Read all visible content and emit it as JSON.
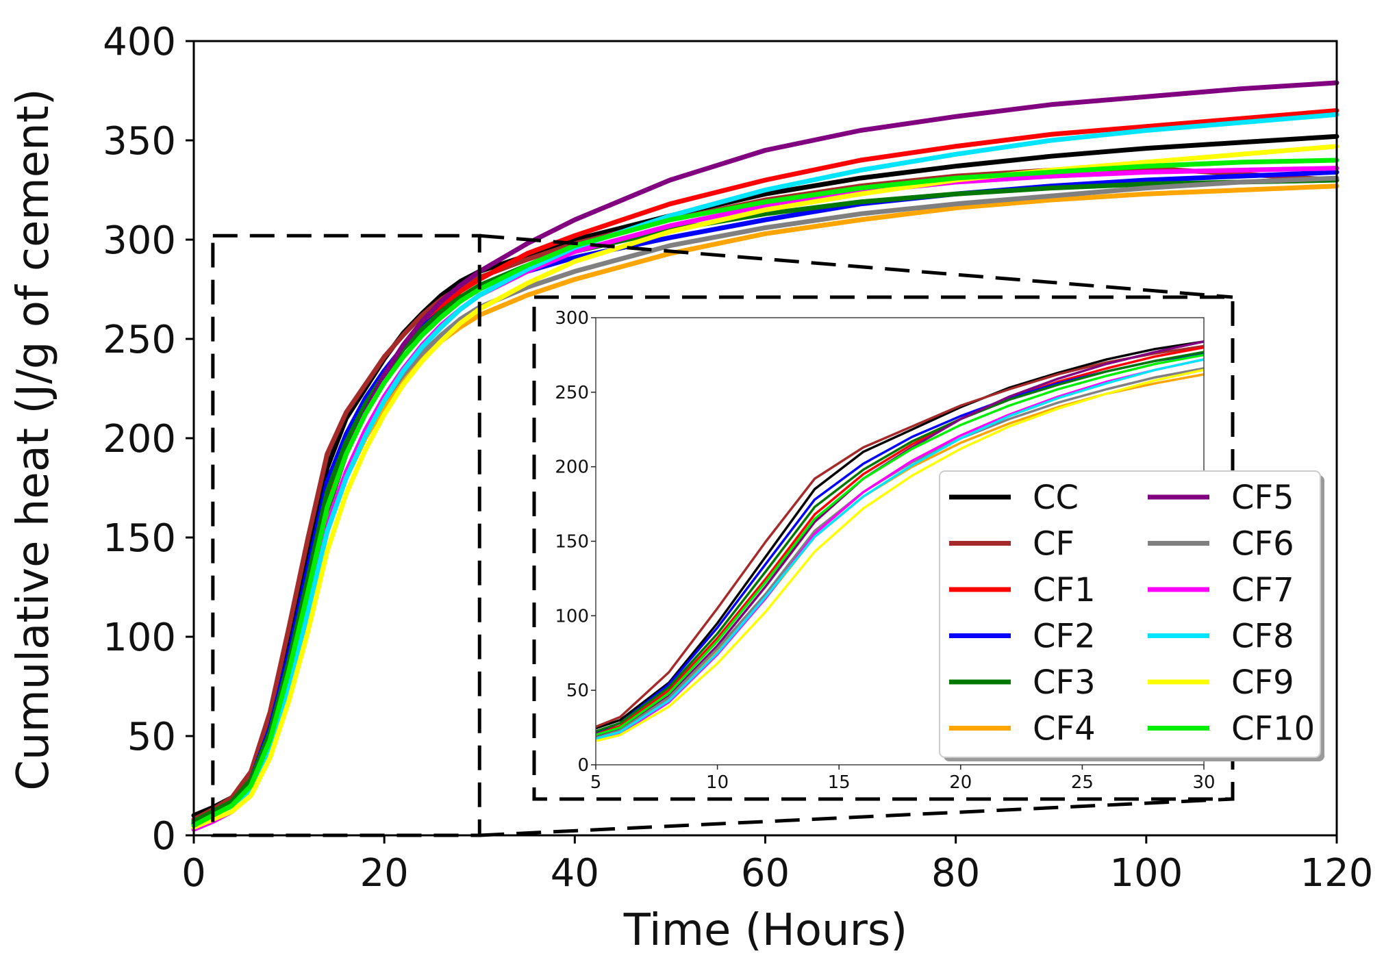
{
  "chart_data": {
    "type": "line",
    "xlabel": "Time (Hours)",
    "ylabel": "Cumulative heat (J/g of cement)",
    "xlim": [
      0,
      120
    ],
    "ylim": [
      0,
      400
    ],
    "xticks": [
      "0",
      "20",
      "40",
      "60",
      "80",
      "100",
      "120"
    ],
    "yticks": [
      "0",
      "50",
      "100",
      "150",
      "200",
      "250",
      "300",
      "350",
      "400"
    ],
    "x": [
      0,
      2,
      4,
      6,
      8,
      10,
      12,
      14,
      16,
      18,
      20,
      22,
      24,
      26,
      28,
      30,
      35,
      40,
      50,
      60,
      70,
      80,
      90,
      100,
      110,
      120
    ],
    "series": [
      {
        "name": "CC",
        "color": "#000000",
        "values": [
          10,
          14,
          19,
          30,
          55,
          95,
          140,
          185,
          210,
          225,
          240,
          253,
          263,
          272,
          279,
          284,
          292,
          300,
          312,
          323,
          331,
          337,
          342,
          346,
          349,
          352
        ]
      },
      {
        "name": "CF",
        "color": "#a52a2a",
        "values": [
          8,
          13,
          19,
          32,
          62,
          105,
          150,
          192,
          213,
          227,
          241,
          252,
          262,
          270,
          276,
          281,
          290,
          298,
          310,
          320,
          327,
          332,
          335,
          336,
          333,
          330
        ]
      },
      {
        "name": "CF1",
        "color": "#ff0000",
        "values": [
          6,
          11,
          16,
          26,
          50,
          85,
          125,
          168,
          195,
          215,
          232,
          246,
          257,
          266,
          274,
          280,
          293,
          302,
          318,
          330,
          340,
          347,
          353,
          357,
          361,
          365
        ]
      },
      {
        "name": "CF2",
        "color": "#0000ff",
        "values": [
          6,
          11,
          16,
          28,
          54,
          92,
          135,
          178,
          202,
          220,
          234,
          246,
          256,
          264,
          271,
          276,
          284,
          291,
          301,
          310,
          318,
          323,
          327,
          330,
          332,
          334
        ]
      },
      {
        "name": "CF3",
        "color": "#007700",
        "values": [
          7,
          12,
          17,
          28,
          52,
          88,
          130,
          173,
          198,
          217,
          232,
          245,
          255,
          264,
          271,
          277,
          287,
          294,
          305,
          313,
          319,
          323,
          326,
          328,
          329,
          330
        ]
      },
      {
        "name": "CF4",
        "color": "#ffa500",
        "values": [
          3,
          7,
          12,
          22,
          44,
          76,
          112,
          153,
          180,
          200,
          216,
          229,
          240,
          249,
          256,
          262,
          272,
          280,
          293,
          303,
          310,
          316,
          320,
          323,
          325,
          327
        ]
      },
      {
        "name": "CF5",
        "color": "#800080",
        "values": [
          5,
          9,
          14,
          24,
          46,
          80,
          120,
          163,
          192,
          213,
          232,
          247,
          259,
          269,
          277,
          284,
          298,
          310,
          330,
          345,
          355,
          362,
          368,
          372,
          376,
          379
        ]
      },
      {
        "name": "CF6",
        "color": "#808080",
        "values": [
          4,
          8,
          13,
          23,
          45,
          78,
          115,
          157,
          183,
          203,
          219,
          232,
          243,
          252,
          260,
          266,
          276,
          284,
          297,
          306,
          313,
          318,
          322,
          326,
          329,
          331
        ]
      },
      {
        "name": "CF7",
        "color": "#ff00ff",
        "values": [
          3,
          7,
          12,
          21,
          42,
          74,
          112,
          155,
          183,
          204,
          221,
          235,
          247,
          257,
          265,
          272,
          284,
          294,
          307,
          317,
          324,
          329,
          332,
          334,
          335,
          336
        ]
      },
      {
        "name": "CF8",
        "color": "#00e5ff",
        "values": [
          4,
          8,
          13,
          22,
          43,
          75,
          113,
          153,
          180,
          201,
          219,
          234,
          246,
          256,
          265,
          272,
          285,
          296,
          312,
          325,
          335,
          343,
          350,
          355,
          359,
          363
        ]
      },
      {
        "name": "CF9",
        "color": "#ffff00",
        "values": [
          4,
          8,
          12,
          20,
          39,
          68,
          103,
          143,
          172,
          194,
          212,
          227,
          239,
          249,
          258,
          265,
          278,
          289,
          304,
          315,
          323,
          330,
          335,
          339,
          343,
          347
        ]
      },
      {
        "name": "CF10",
        "color": "#00ee00",
        "values": [
          5,
          10,
          15,
          25,
          48,
          83,
          123,
          165,
          192,
          212,
          228,
          241,
          252,
          261,
          269,
          275,
          287,
          297,
          310,
          319,
          326,
          331,
          334,
          337,
          339,
          340
        ]
      }
    ],
    "inset": {
      "xlim": [
        5,
        30
      ],
      "ylim": [
        0,
        300
      ],
      "xticks": [
        "5",
        "10",
        "15",
        "20",
        "25",
        "30"
      ],
      "yticks": [
        "0",
        "50",
        "100",
        "150",
        "200",
        "250",
        "300"
      ]
    },
    "zoom_region": {
      "xlim": [
        2,
        30
      ],
      "ylim": [
        0,
        302
      ]
    },
    "legend_location": "right of inset, two columns"
  }
}
